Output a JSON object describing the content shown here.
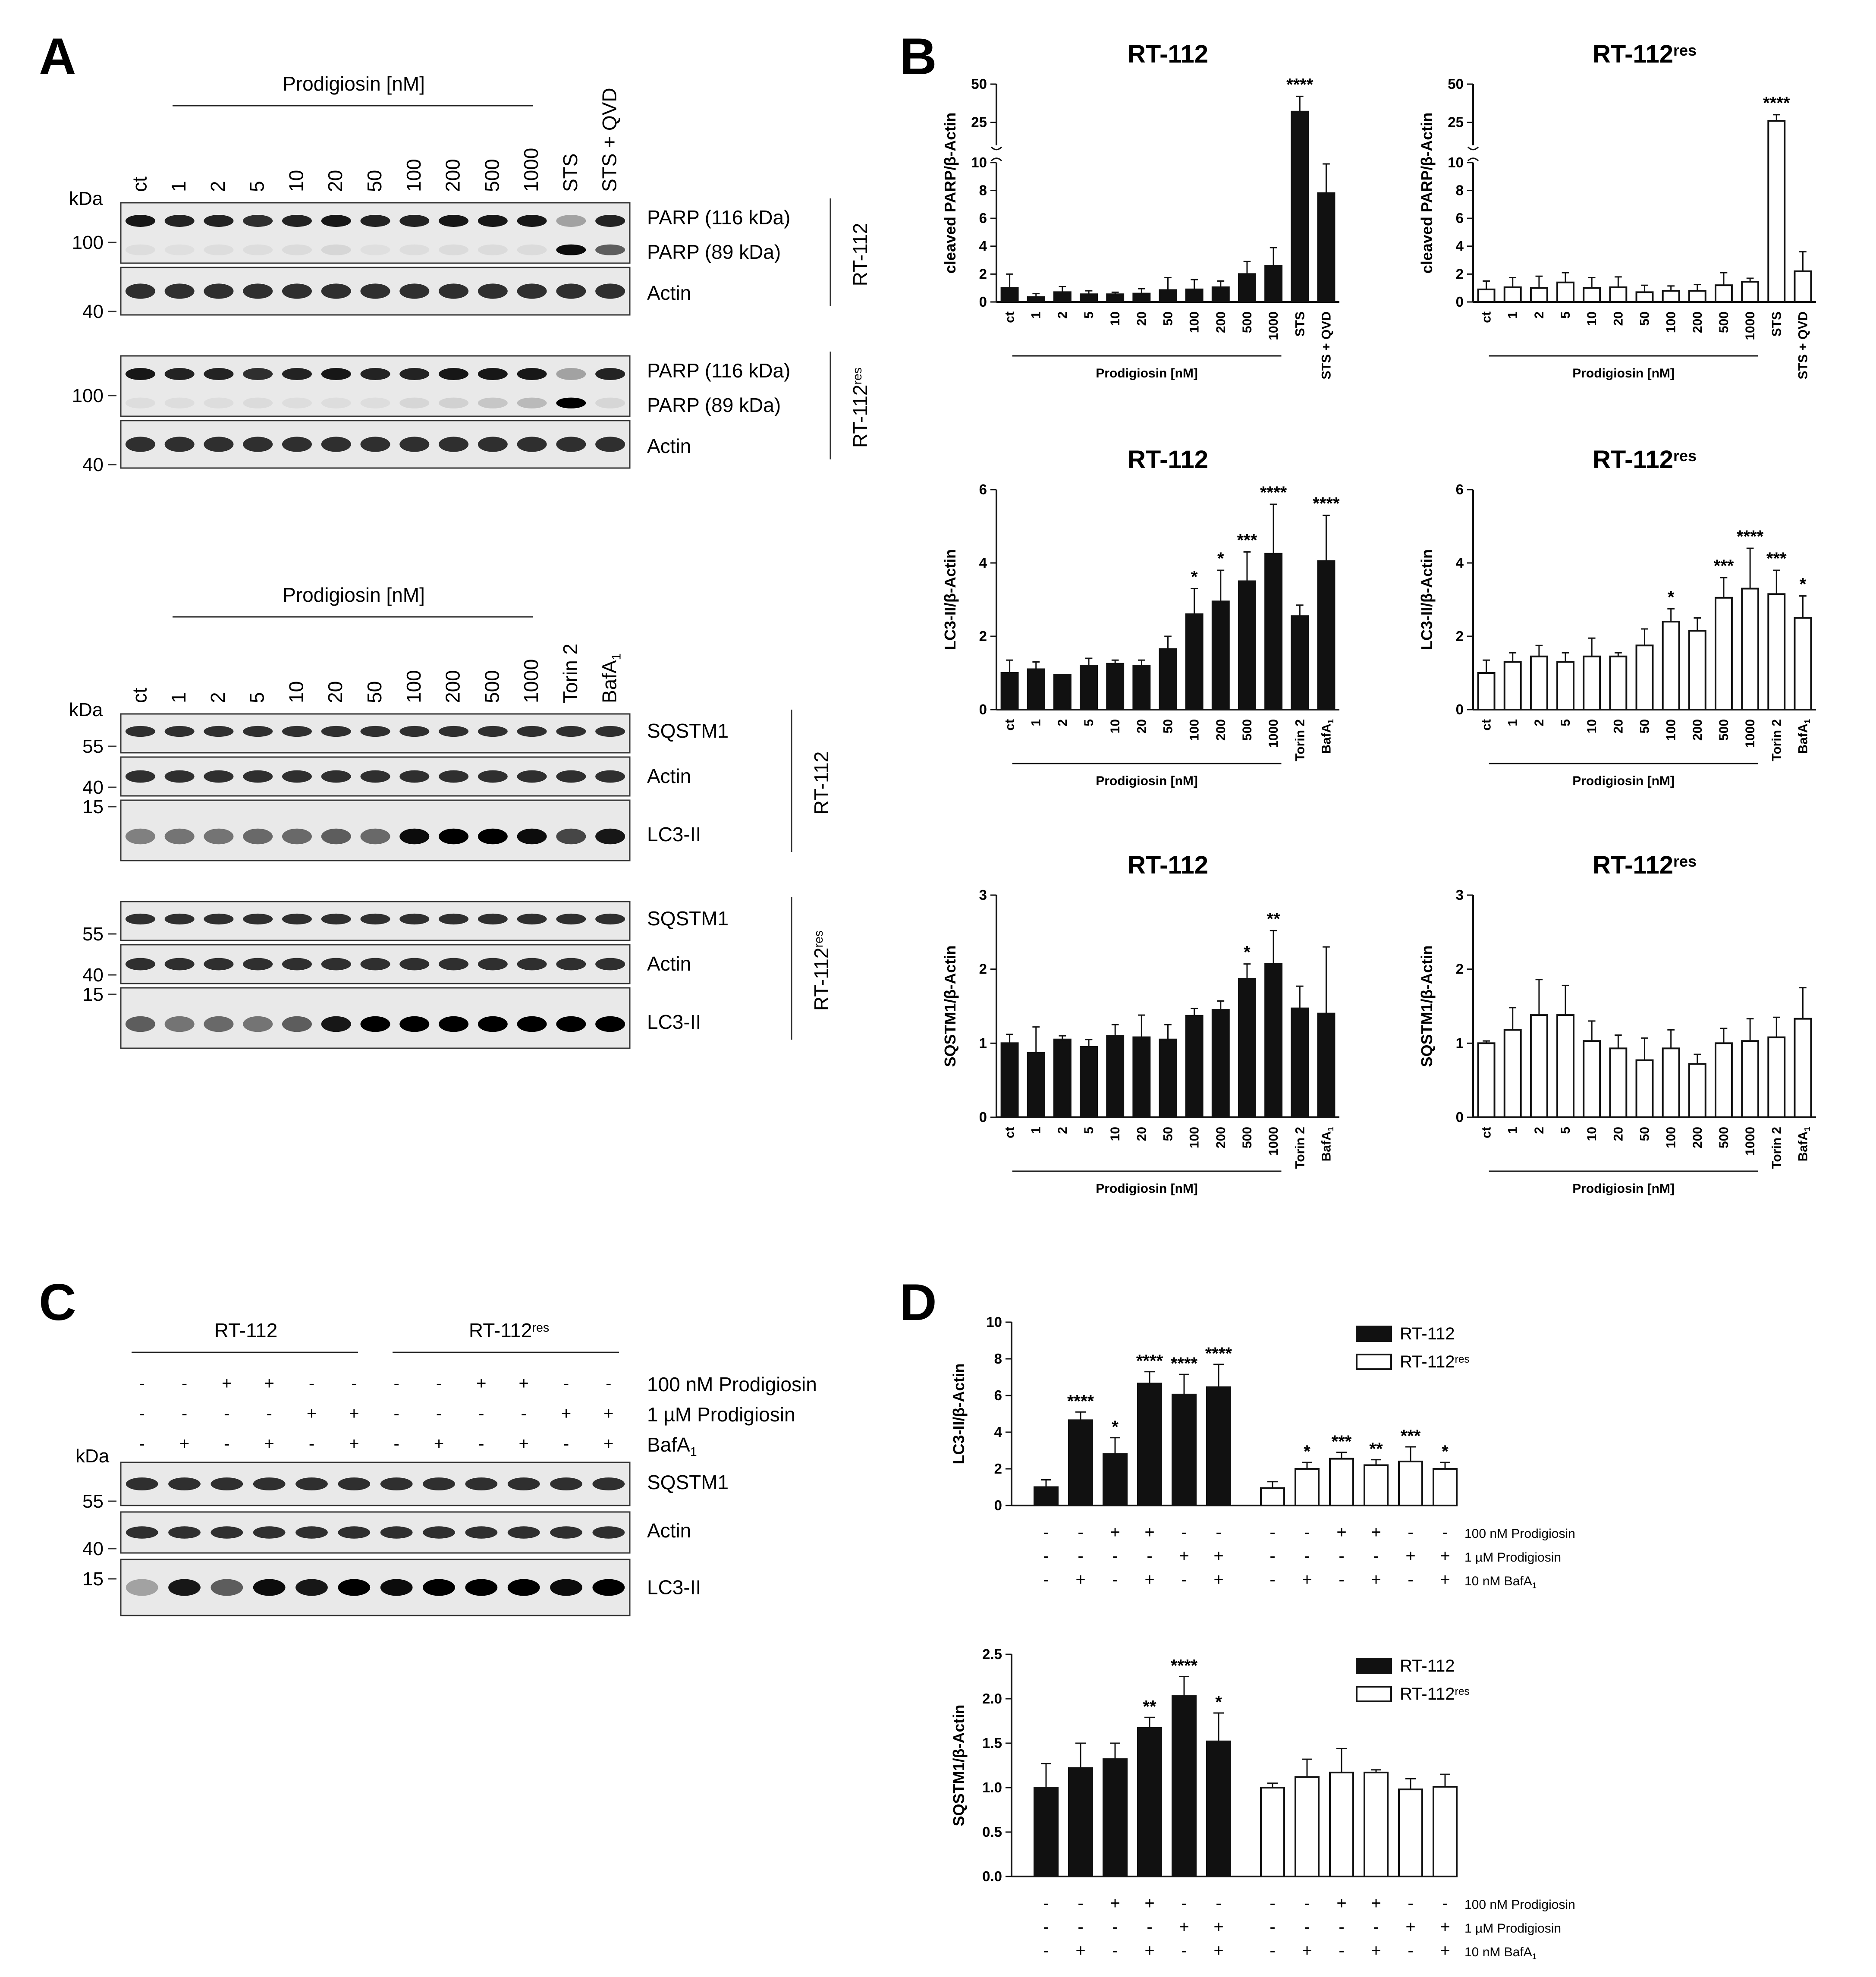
{
  "figure": {
    "panel_labels": [
      "A",
      "B",
      "C",
      "D"
    ],
    "blots": {
      "kda": "kDa",
      "top": {
        "group_label": "Prodigiosin [nM]",
        "lanes": [
          "ct",
          "1",
          "2",
          "5",
          "10",
          "20",
          "50",
          "100",
          "200",
          "500",
          "1000",
          "STS",
          "STS + QVD"
        ],
        "cell_lines": [
          {
            "name": "RT-112",
            "rows": [
              {
                "label": "PARP (116 kDa)",
                "marker": "100",
                "kind": "parp"
              },
              {
                "label": "PARP (89 kDa)"
              },
              {
                "label": "Actin",
                "marker": "40",
                "kind": "actin"
              }
            ]
          },
          {
            "name": "RT-112",
            "sup": "res",
            "rows": [
              {
                "label": "PARP (116 kDa)",
                "marker": "100",
                "kind": "parp"
              },
              {
                "label": "PARP (89 kDa)"
              },
              {
                "label": "Actin",
                "marker": "40",
                "kind": "actin"
              }
            ]
          }
        ]
      },
      "bottom": {
        "group_label": "Prodigiosin [nM]",
        "lanes": [
          "ct",
          "1",
          "2",
          "5",
          "10",
          "20",
          "50",
          "100",
          "200",
          "500",
          "1000",
          "Torin 2",
          "BafA"
        ],
        "lane_subscript": "1",
        "cell_lines": [
          {
            "name": "RT-112",
            "rows": [
              {
                "label": "SQSTM1",
                "marker": "55"
              },
              {
                "label": "Actin",
                "marker": "40"
              },
              {
                "label": "LC3-II",
                "marker": "15"
              }
            ]
          },
          {
            "name": "RT-112",
            "sup": "res",
            "rows": [
              {
                "label": "SQSTM1",
                "marker": "55"
              },
              {
                "label": "Actin",
                "marker": "40"
              },
              {
                "label": "LC3-II",
                "marker": "15"
              }
            ]
          }
        ]
      },
      "c": {
        "groups": [
          {
            "name": "RT-112"
          },
          {
            "name": "RT-112",
            "sup": "res"
          }
        ],
        "conditions": [
          {
            "label": "100 nM Prodigiosin",
            "signs": [
              "-",
              "-",
              "+",
              "+",
              "-",
              "-",
              "-",
              "-",
              "+",
              "+",
              "-",
              "-"
            ]
          },
          {
            "label": "1 µM Prodigiosin",
            "signs": [
              "-",
              "-",
              "-",
              "-",
              "+",
              "+",
              "-",
              "-",
              "-",
              "-",
              "+",
              "+"
            ]
          },
          {
            "label": "BafA",
            "sub": "1",
            "signs": [
              "-",
              "+",
              "-",
              "+",
              "-",
              "+",
              "-",
              "+",
              "-",
              "+",
              "-",
              "+"
            ]
          }
        ],
        "rows": [
          {
            "label": "SQSTM1",
            "marker": "55"
          },
          {
            "label": "Actin",
            "marker": "40"
          },
          {
            "label": "LC3-II",
            "marker": "15"
          }
        ]
      }
    }
  },
  "chart_data": [
    {
      "type": "bar",
      "title": "RT-112",
      "ylabel": "cleaved PARP/β-Actin",
      "ylim": [
        0,
        50
      ],
      "axis_break": true,
      "yticks": [
        0,
        2,
        4,
        6,
        8,
        10,
        25,
        50
      ],
      "fill": "#111111",
      "group_label": "Prodigiosin [nM]",
      "categories": [
        "ct",
        "1",
        "2",
        "5",
        "10",
        "20",
        "50",
        "100",
        "200",
        "500",
        "1000",
        "STS",
        "STS + QVD"
      ],
      "values": [
        1.0,
        0.35,
        0.7,
        0.55,
        0.55,
        0.6,
        0.85,
        0.9,
        1.05,
        2.0,
        2.6,
        32,
        7.8
      ],
      "errors": [
        1.0,
        0.25,
        0.4,
        0.25,
        0.15,
        0.35,
        0.9,
        0.7,
        0.45,
        0.9,
        1.3,
        10,
        2.1
      ],
      "significance": [
        "",
        "",
        "",
        "",
        "",
        "",
        "",
        "",
        "",
        "",
        "",
        "****",
        ""
      ]
    },
    {
      "type": "bar",
      "title": "RT-112",
      "title_sup": "res",
      "ylabel": "cleaved PARP/β-Actin",
      "ylim": [
        0,
        50
      ],
      "axis_break": true,
      "yticks": [
        0,
        2,
        4,
        6,
        8,
        10,
        25,
        50
      ],
      "fill": "#ffffff",
      "group_label": "Prodigiosin [nM]",
      "categories": [
        "ct",
        "1",
        "2",
        "5",
        "10",
        "20",
        "50",
        "100",
        "200",
        "500",
        "1000",
        "STS",
        "STS + QVD"
      ],
      "values": [
        0.9,
        1.05,
        1.0,
        1.4,
        1.0,
        1.05,
        0.7,
        0.8,
        0.8,
        1.2,
        1.45,
        26,
        2.2
      ],
      "errors": [
        0.6,
        0.7,
        0.85,
        0.7,
        0.75,
        0.75,
        0.5,
        0.35,
        0.45,
        0.9,
        0.25,
        4,
        1.4
      ],
      "significance": [
        "",
        "",
        "",
        "",
        "",
        "",
        "",
        "",
        "",
        "",
        "",
        "****",
        ""
      ]
    },
    {
      "type": "bar",
      "title": "RT-112",
      "ylabel": "LC3-II/β-Actin",
      "ylim": [
        0,
        6
      ],
      "yticks": [
        0,
        2,
        4,
        6
      ],
      "fill": "#111111",
      "group_label": "Prodigiosin [nM]",
      "categories": [
        "ct",
        "1",
        "2",
        "5",
        "10",
        "20",
        "50",
        "100",
        "200",
        "500",
        "1000",
        "Torin 2",
        "BafA"
      ],
      "cat_sub": {
        "12": "1"
      },
      "values": [
        1.0,
        1.1,
        0.95,
        1.2,
        1.25,
        1.2,
        1.65,
        2.6,
        2.95,
        3.5,
        4.25,
        2.55,
        4.05
      ],
      "errors": [
        0.35,
        0.2,
        0.0,
        0.2,
        0.1,
        0.15,
        0.35,
        0.7,
        0.85,
        0.8,
        1.35,
        0.3,
        1.25
      ],
      "significance": [
        "",
        "",
        "",
        "",
        "",
        "",
        "",
        "*",
        "*",
        "***",
        "****",
        "",
        "****"
      ]
    },
    {
      "type": "bar",
      "title": "RT-112",
      "title_sup": "res",
      "ylabel": "LC3-II/β-Actin",
      "ylim": [
        0,
        6
      ],
      "yticks": [
        0,
        2,
        4,
        6
      ],
      "fill": "#ffffff",
      "group_label": "Prodigiosin [nM]",
      "categories": [
        "ct",
        "1",
        "2",
        "5",
        "10",
        "20",
        "50",
        "100",
        "200",
        "500",
        "1000",
        "Torin 2",
        "BafA"
      ],
      "cat_sub": {
        "12": "1"
      },
      "values": [
        1.0,
        1.3,
        1.45,
        1.3,
        1.45,
        1.45,
        1.75,
        2.4,
        2.15,
        3.05,
        3.3,
        3.15,
        2.5
      ],
      "errors": [
        0.35,
        0.25,
        0.3,
        0.25,
        0.5,
        0.1,
        0.45,
        0.35,
        0.35,
        0.55,
        1.1,
        0.65,
        0.6
      ],
      "significance": [
        "",
        "",
        "",
        "",
        "",
        "",
        "",
        "*",
        "",
        "***",
        "****",
        "***",
        "*"
      ]
    },
    {
      "type": "bar",
      "title": "RT-112",
      "ylabel": "SQSTM1/β-Actin",
      "ylim": [
        0,
        3
      ],
      "yticks": [
        0,
        1,
        2,
        3
      ],
      "fill": "#111111",
      "group_label": "Prodigiosin [nM]",
      "categories": [
        "ct",
        "1",
        "2",
        "5",
        "10",
        "20",
        "50",
        "100",
        "200",
        "500",
        "1000",
        "Torin 2",
        "BafA"
      ],
      "cat_sub": {
        "12": "1"
      },
      "values": [
        1.0,
        0.87,
        1.05,
        0.95,
        1.1,
        1.08,
        1.05,
        1.37,
        1.45,
        1.87,
        2.07,
        1.47,
        1.4
      ],
      "errors": [
        0.12,
        0.35,
        0.05,
        0.1,
        0.15,
        0.3,
        0.2,
        0.1,
        0.12,
        0.2,
        0.45,
        0.3,
        0.9
      ],
      "significance": [
        "",
        "",
        "",
        "",
        "",
        "",
        "",
        "",
        "",
        "*",
        "**",
        "",
        ""
      ]
    },
    {
      "type": "bar",
      "title": "RT-112",
      "title_sup": "res",
      "ylabel": "SQSTM1/β-Actin",
      "ylim": [
        0,
        3
      ],
      "yticks": [
        0,
        1,
        2,
        3
      ],
      "fill": "#ffffff",
      "group_label": "Prodigiosin [nM]",
      "categories": [
        "ct",
        "1",
        "2",
        "5",
        "10",
        "20",
        "50",
        "100",
        "200",
        "500",
        "1000",
        "Torin 2",
        "BafA"
      ],
      "cat_sub": {
        "12": "1"
      },
      "values": [
        1.0,
        1.18,
        1.38,
        1.38,
        1.03,
        0.93,
        0.77,
        0.93,
        0.72,
        1.0,
        1.03,
        1.08,
        1.33
      ],
      "errors": [
        0.03,
        0.3,
        0.48,
        0.4,
        0.27,
        0.18,
        0.3,
        0.25,
        0.13,
        0.2,
        0.3,
        0.27,
        0.42
      ],
      "significance": [
        "",
        "",
        "",
        "",
        "",
        "",
        "",
        "",
        "",
        "",
        "",
        "",
        ""
      ]
    },
    {
      "type": "bar",
      "ylabel": "LC3-II/β-Actin",
      "ylim": [
        0,
        10
      ],
      "yticks": [
        0,
        2,
        4,
        6,
        8,
        10
      ],
      "legend": {
        "position": "top-right",
        "entries": [
          {
            "name": "RT-112",
            "fill": "#111111"
          },
          {
            "name": "RT-112",
            "sup": "res",
            "fill": "#ffffff"
          }
        ]
      },
      "series": [
        {
          "name": "RT-112",
          "fill": "#111111",
          "values": [
            1.0,
            4.65,
            2.8,
            6.65,
            6.05,
            6.45
          ],
          "errors": [
            0.4,
            0.45,
            0.9,
            0.65,
            1.1,
            1.25
          ],
          "significance": [
            "",
            "****",
            "*",
            "****",
            "****",
            "****"
          ]
        },
        {
          "name": "RT-112res",
          "fill": "#ffffff",
          "values": [
            0.95,
            2.0,
            2.55,
            2.2,
            2.4,
            2.0
          ],
          "errors": [
            0.35,
            0.35,
            0.35,
            0.3,
            0.8,
            0.35
          ],
          "significance": [
            "",
            "*",
            "***",
            "**",
            "***",
            "*"
          ]
        }
      ],
      "conditions": [
        {
          "label": "100 nM Prodigiosin",
          "signs": [
            "-",
            "-",
            "+",
            "+",
            "-",
            "-"
          ]
        },
        {
          "label": "1 µM Prodigiosin",
          "signs": [
            "-",
            "-",
            "-",
            "-",
            "+",
            "+"
          ]
        },
        {
          "label": "10 nM BafA",
          "sub": "1",
          "signs": [
            "-",
            "+",
            "-",
            "+",
            "-",
            "+"
          ]
        }
      ]
    },
    {
      "type": "bar",
      "ylabel": "SQSTM1/β-Actin",
      "ylim": [
        0,
        2.5
      ],
      "yticks": [
        0.0,
        0.5,
        1.0,
        1.5,
        2.0,
        2.5
      ],
      "legend": {
        "position": "top-right",
        "entries": [
          {
            "name": "RT-112",
            "fill": "#111111"
          },
          {
            "name": "RT-112",
            "sup": "res",
            "fill": "#ffffff"
          }
        ]
      },
      "series": [
        {
          "name": "RT-112",
          "fill": "#111111",
          "values": [
            1.0,
            1.22,
            1.32,
            1.67,
            2.03,
            1.52
          ],
          "errors": [
            0.27,
            0.28,
            0.18,
            0.12,
            0.22,
            0.32
          ],
          "significance": [
            "",
            "",
            "",
            "**",
            "****",
            "*"
          ]
        },
        {
          "name": "RT-112res",
          "fill": "#ffffff",
          "values": [
            1.0,
            1.12,
            1.17,
            1.17,
            0.98,
            1.01
          ],
          "errors": [
            0.05,
            0.2,
            0.27,
            0.03,
            0.12,
            0.14
          ],
          "significance": [
            "",
            "",
            "",
            "",
            "",
            ""
          ]
        }
      ],
      "conditions": [
        {
          "label": "100 nM Prodigiosin",
          "signs": [
            "-",
            "-",
            "+",
            "+",
            "-",
            "-"
          ]
        },
        {
          "label": "1 µM Prodigiosin",
          "signs": [
            "-",
            "-",
            "-",
            "-",
            "+",
            "+"
          ]
        },
        {
          "label": "10 nM BafA",
          "sub": "1",
          "signs": [
            "-",
            "+",
            "-",
            "+",
            "-",
            "+"
          ]
        }
      ]
    }
  ]
}
